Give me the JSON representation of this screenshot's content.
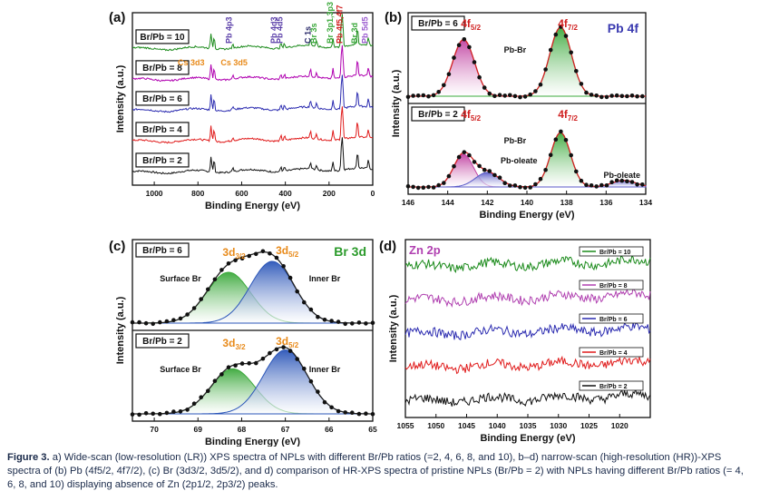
{
  "caption": {
    "label": "Figure 3.",
    "body": "a) Wide-scan (low-resolution (LR)) XPS spectra of NPLs with different Br/Pb ratios (=2, 4, 6, 8, and 10), b–d) narrow-scan (high-resolution (HR))-XPS spectra of (b) Pb (4f5/2, 4f7/2), (c) Br (3d3/2, 3d5/2), and d) comparison of HR-XPS spectra of pristine NPLs (Br/Pb = 2) with NPLs having different Br/Pb ratios (= 4, 6, 8, and 10) displaying absence of Zn (2p1/2, 2p3/2) peaks."
  },
  "chart_data": [
    {
      "panel": "(a)",
      "type": "line",
      "xlabel": "Binding Energy (eV)",
      "ylabel": "Intensity (a.u.)",
      "xlim": [
        1100,
        0
      ],
      "xticks": [
        1000,
        800,
        600,
        400,
        200,
        0
      ],
      "series": [
        {
          "name": "Br/Pb = 2",
          "color": "#111111",
          "offset": 0
        },
        {
          "name": "Br/Pb = 4",
          "color": "#e01b1b",
          "offset": 1
        },
        {
          "name": "Br/Pb = 6",
          "color": "#2b2bb0",
          "offset": 2
        },
        {
          "name": "Br/Pb = 8",
          "color": "#b000b0",
          "offset": 3
        },
        {
          "name": "Br/Pb = 10",
          "color": "#1a8a1a",
          "offset": 4
        }
      ],
      "peaks": [
        {
          "x": 740,
          "h": 0.55
        },
        {
          "x": 726,
          "h": 0.45
        },
        {
          "x": 640,
          "h": 0.12
        },
        {
          "x": 420,
          "h": 0.18
        },
        {
          "x": 404,
          "h": 0.16
        },
        {
          "x": 285,
          "h": 0.25
        },
        {
          "x": 257,
          "h": 0.18
        },
        {
          "x": 182,
          "h": 0.35
        },
        {
          "x": 143,
          "h": 0.75
        },
        {
          "x": 138,
          "h": 0.9
        },
        {
          "x": 70,
          "h": 0.6
        },
        {
          "x": 20,
          "h": 0.3
        }
      ],
      "annotations": [
        {
          "text": "Pb 4p3",
          "x": 645,
          "color": "#5a3ea8"
        },
        {
          "text": "Pb 4d3",
          "x": 440,
          "color": "#5a3ea8"
        },
        {
          "text": "Pb 4d5",
          "x": 413,
          "color": "#5a3ea8"
        },
        {
          "text": "C 1s",
          "x": 285,
          "color": "#2a2a6a"
        },
        {
          "text": "Br 3s",
          "x": 257,
          "color": "#3aa83a"
        },
        {
          "text": "Br 3p1,3p3",
          "x": 182,
          "color": "#3aa83a"
        },
        {
          "text": "Pb 4f5,4f7",
          "x": 140,
          "color": "#d02020"
        },
        {
          "text": "Br 3d",
          "x": 70,
          "color": "#3aa83a"
        },
        {
          "text": "Pb 5d5",
          "x": 22,
          "color": "#9a5acf"
        },
        {
          "text": "Cs 3d3",
          "x": 740,
          "color": "#e88a1a"
        },
        {
          "text": "Cs 3d5",
          "x": 726,
          "color": "#e88a1a"
        }
      ]
    },
    {
      "panel": "(b)",
      "type": "line",
      "title": "Pb 4f",
      "xlabel": "Binding Energy (eV)",
      "ylabel": "Intensity (a.u.)",
      "xlim": [
        146,
        134
      ],
      "xticks": [
        146,
        144,
        142,
        140,
        138,
        136,
        134
      ],
      "subplots": [
        {
          "label": "Br/Pb = 6",
          "components": [
            {
              "name": "4f5/2",
              "center": 143.2,
              "height": 0.78,
              "width": 0.55,
              "color": "#c040a0"
            },
            {
              "name": "4f7/2",
              "center": 138.3,
              "height": 0.95,
              "width": 0.55,
              "color": "#3aa83a"
            }
          ],
          "labels": [
            "4f5/2",
            "4f7/2",
            "Pb-Br"
          ]
        },
        {
          "label": "Br/Pb = 2",
          "components": [
            {
              "name": "4f5/2 Pb-Br",
              "center": 143.2,
              "height": 0.45,
              "width": 0.5,
              "color": "#c040a0"
            },
            {
              "name": "Pb-oleate 5/2",
              "center": 142.0,
              "height": 0.2,
              "width": 0.6,
              "color": "#5a5ac8"
            },
            {
              "name": "4f7/2 Pb-Br",
              "center": 138.3,
              "height": 0.75,
              "width": 0.5,
              "color": "#3aa83a"
            },
            {
              "name": "Pb-oleate 7/2",
              "center": 135.1,
              "height": 0.09,
              "width": 0.6,
              "color": "#5a5ac8"
            }
          ],
          "labels": [
            "4f5/2",
            "4f7/2",
            "Pb-Br",
            "Pb-oleate",
            "Pb-oleate"
          ]
        }
      ]
    },
    {
      "panel": "(c)",
      "type": "line",
      "title": "Br 3d",
      "xlabel": "Binding Energy (eV)",
      "ylabel": "Intensity (a.u.)",
      "xlim": [
        70.5,
        65
      ],
      "xticks": [
        70,
        69,
        68,
        67,
        66,
        65
      ],
      "subplots": [
        {
          "label": "Br/Pb = 6",
          "components": [
            {
              "name": "3d3/2 Surface Br",
              "center": 68.3,
              "height": 0.7,
              "width": 0.5,
              "color": "#3aa83a"
            },
            {
              "name": "3d5/2 Inner Br",
              "center": 67.3,
              "height": 0.85,
              "width": 0.5,
              "color": "#2a55b8"
            }
          ],
          "labels": [
            "3d3/2",
            "3d5/2",
            "Surface Br",
            "Inner Br"
          ]
        },
        {
          "label": "Br/Pb = 2",
          "components": [
            {
              "name": "3d3/2 Surface Br",
              "center": 68.2,
              "height": 0.62,
              "width": 0.5,
              "color": "#3aa83a"
            },
            {
              "name": "3d5/2 Inner Br",
              "center": 67.0,
              "height": 0.88,
              "width": 0.5,
              "color": "#2a55b8"
            }
          ],
          "labels": [
            "3d3/2",
            "3d5/2",
            "Surface Br",
            "Inner Br"
          ]
        }
      ]
    },
    {
      "panel": "(d)",
      "type": "line",
      "title": "Zn 2p",
      "xlabel": "Binding Energy (eV)",
      "ylabel": "Intensity (a.u.)",
      "xlim": [
        1055,
        1015
      ],
      "xticks": [
        1055,
        1050,
        1045,
        1040,
        1035,
        1030,
        1025,
        1020
      ],
      "series": [
        {
          "name": "Br/Pb = 10",
          "color": "#1a8a1a",
          "offset": 4
        },
        {
          "name": "Br/Pb = 8",
          "color": "#b040b0",
          "offset": 3
        },
        {
          "name": "Br/Pb = 6",
          "color": "#2b2bb0",
          "offset": 2
        },
        {
          "name": "Br/Pb = 4",
          "color": "#e01b1b",
          "offset": 1
        },
        {
          "name": "Br/Pb = 2",
          "color": "#111111",
          "offset": 0
        }
      ]
    }
  ]
}
